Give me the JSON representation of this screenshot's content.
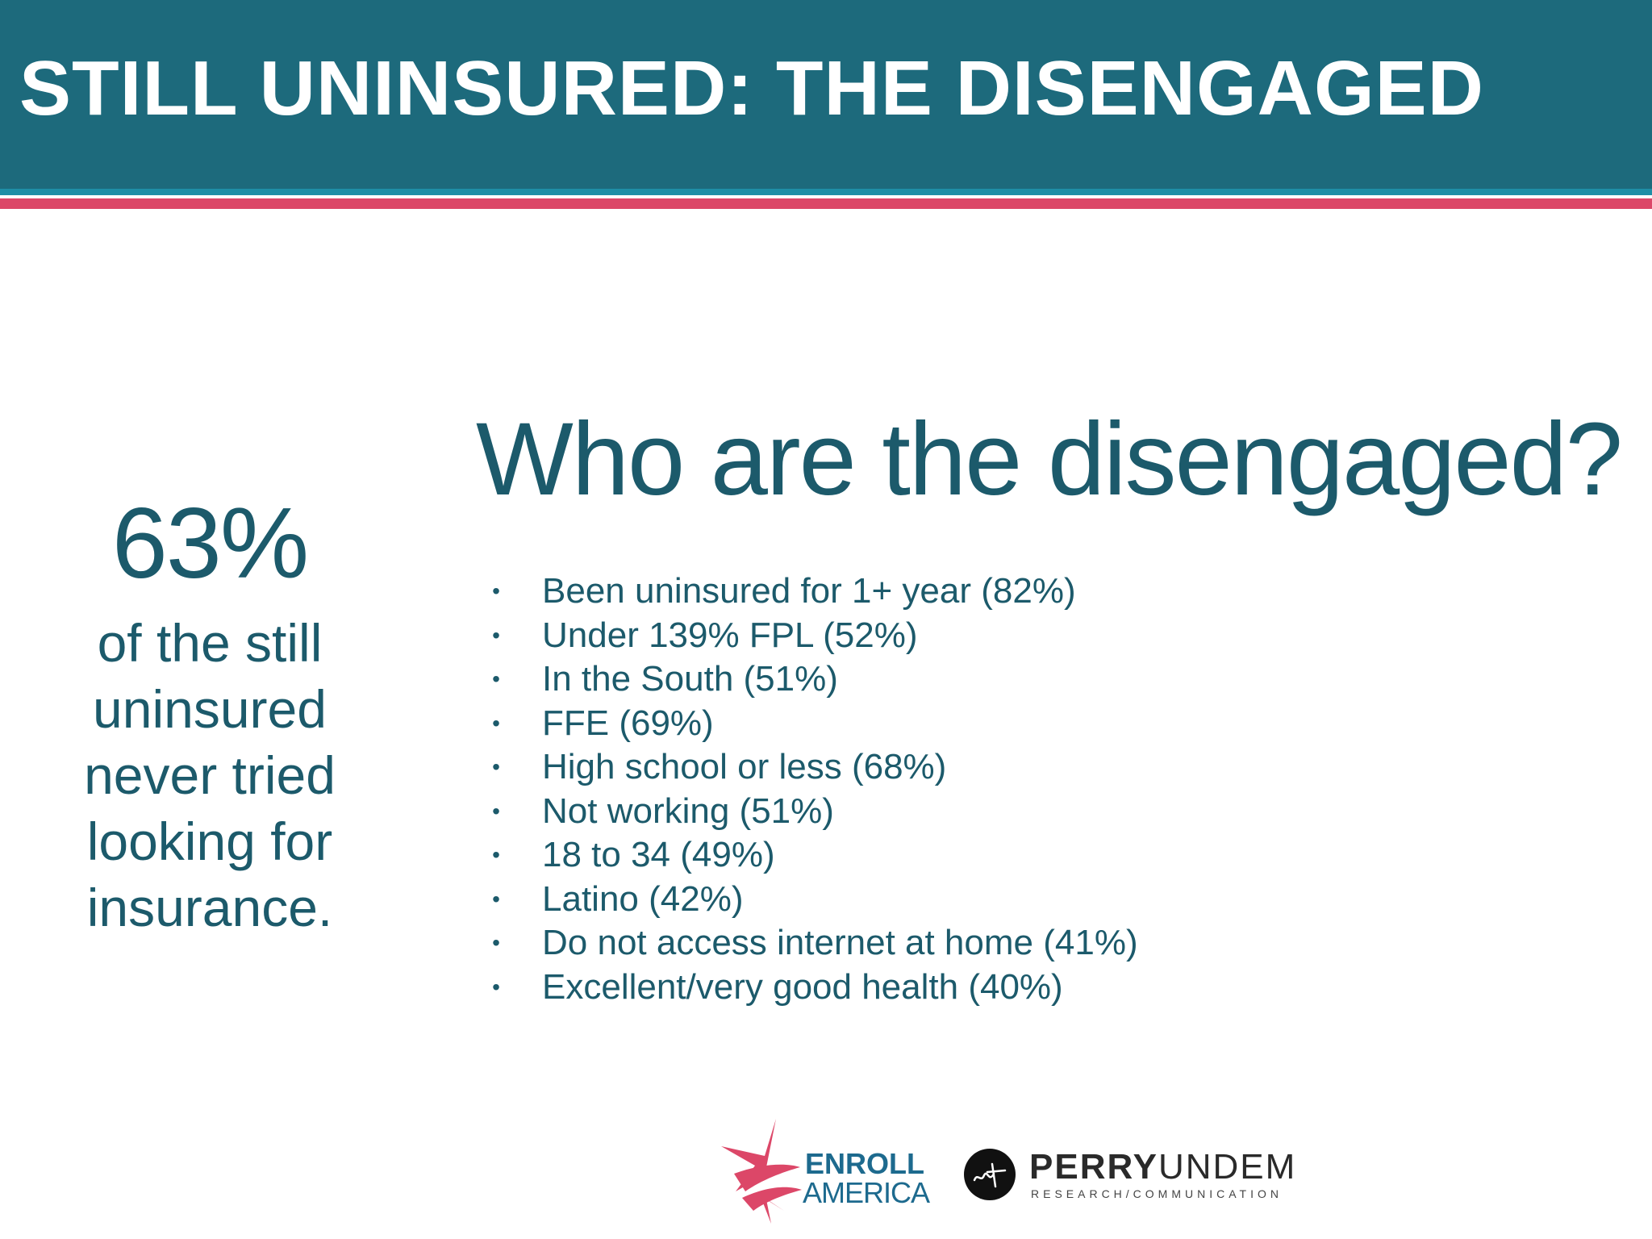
{
  "header": {
    "title": "STILL UNINSURED: THE DISENGAGED"
  },
  "stat": {
    "number": "63%",
    "lines": [
      "of the still",
      "uninsured",
      "never tried",
      "looking for",
      "insurance."
    ]
  },
  "section": {
    "heading": "Who are the disengaged?",
    "bullets": [
      "Been uninsured for 1+ year (82%)",
      "Under 139% FPL (52%)",
      "In the South (51%)",
      "FFE (69%)",
      "High school or less (68%)",
      "Not working (51%)",
      "18 to 34 (49%)",
      "Latino (42%)",
      "Do not access internet at home (41%)",
      "Excellent/very good health (40%)"
    ],
    "bullet_glyph": "•"
  },
  "logos": {
    "enroll": {
      "line1": "ENROLL",
      "line2": "AMERICA"
    },
    "perry": {
      "name_bold": "PERRY",
      "name_light": "UNDEM",
      "sub": "RESEARCH/COMMUNICATION"
    }
  },
  "colors": {
    "header_bg": "#1d6a7c",
    "accent_teal": "#1f8ea6",
    "accent_red": "#dc4768",
    "text_teal": "#1c5a6b"
  }
}
